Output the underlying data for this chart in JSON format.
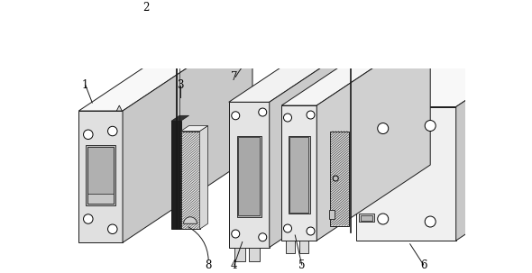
{
  "bg": "#ffffff",
  "lc": "#1a1a1a",
  "lw": 0.7,
  "face_light": "#f0f0f0",
  "face_mid": "#e0e0e0",
  "face_dark": "#c8c8c8",
  "top_light": "#f8f8f8",
  "side_dark": "#b0b0b0",
  "black": "#111111",
  "dark_panel": "#2a2a2a",
  "hatch_color": "#555555"
}
